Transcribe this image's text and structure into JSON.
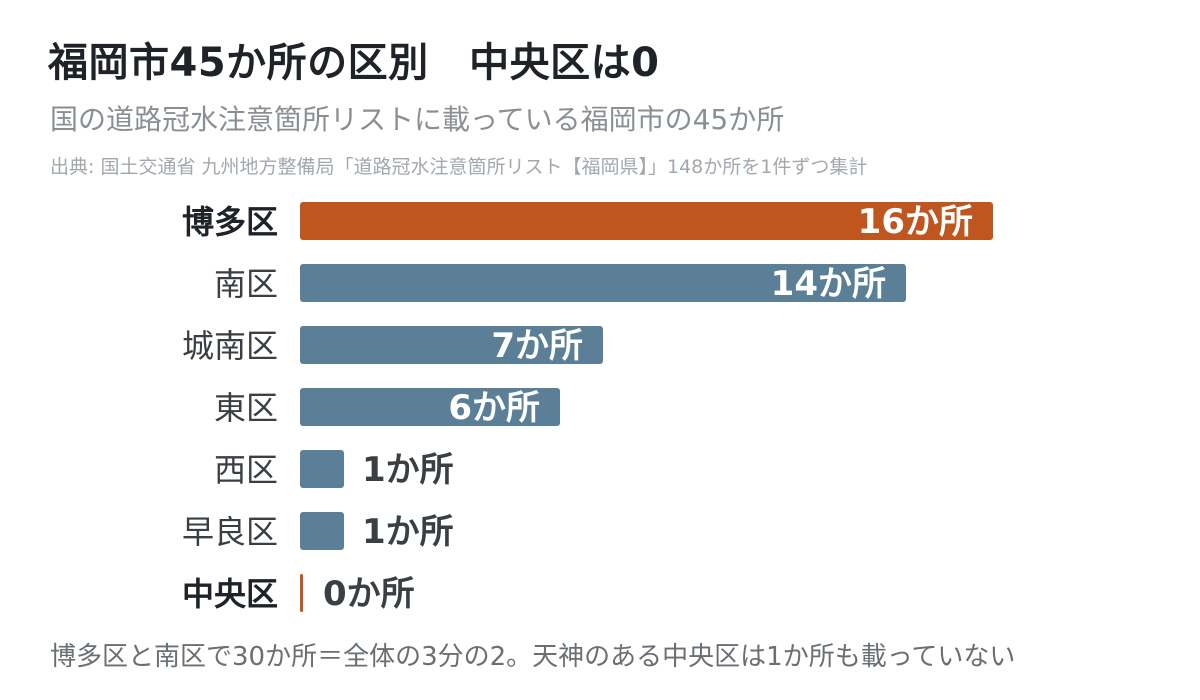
{
  "colors": {
    "highlight": "#c0561f",
    "normal": "#5b7f96"
  },
  "chart_data": {
    "type": "bar",
    "orientation": "horizontal",
    "title": "福岡市45か所の区別　中央区は0",
    "subtitle": "国の道路冠水注意箇所リストに載っている福岡市の45か所",
    "source": "出典: 国土交通省 九州地方整備局「道路冠水注意箇所リスト【福岡県】」148か所を1件ずつ集計",
    "unit": "か所",
    "xlim": [
      0,
      16
    ],
    "grid": false,
    "categories": [
      "博多区",
      "南区",
      "城南区",
      "東区",
      "西区",
      "早良区",
      "中央区"
    ],
    "values": [
      16,
      14,
      7,
      6,
      1,
      1,
      0
    ],
    "labels": [
      "16か所",
      "14か所",
      "7か所",
      "6か所",
      "1か所",
      "1か所",
      "0か所"
    ],
    "highlighted": [
      true,
      false,
      false,
      false,
      false,
      false,
      true
    ],
    "annotation": "博多区と南区で30か所＝全体の3分の2。天神のある中央区は1か所も載っていない"
  }
}
